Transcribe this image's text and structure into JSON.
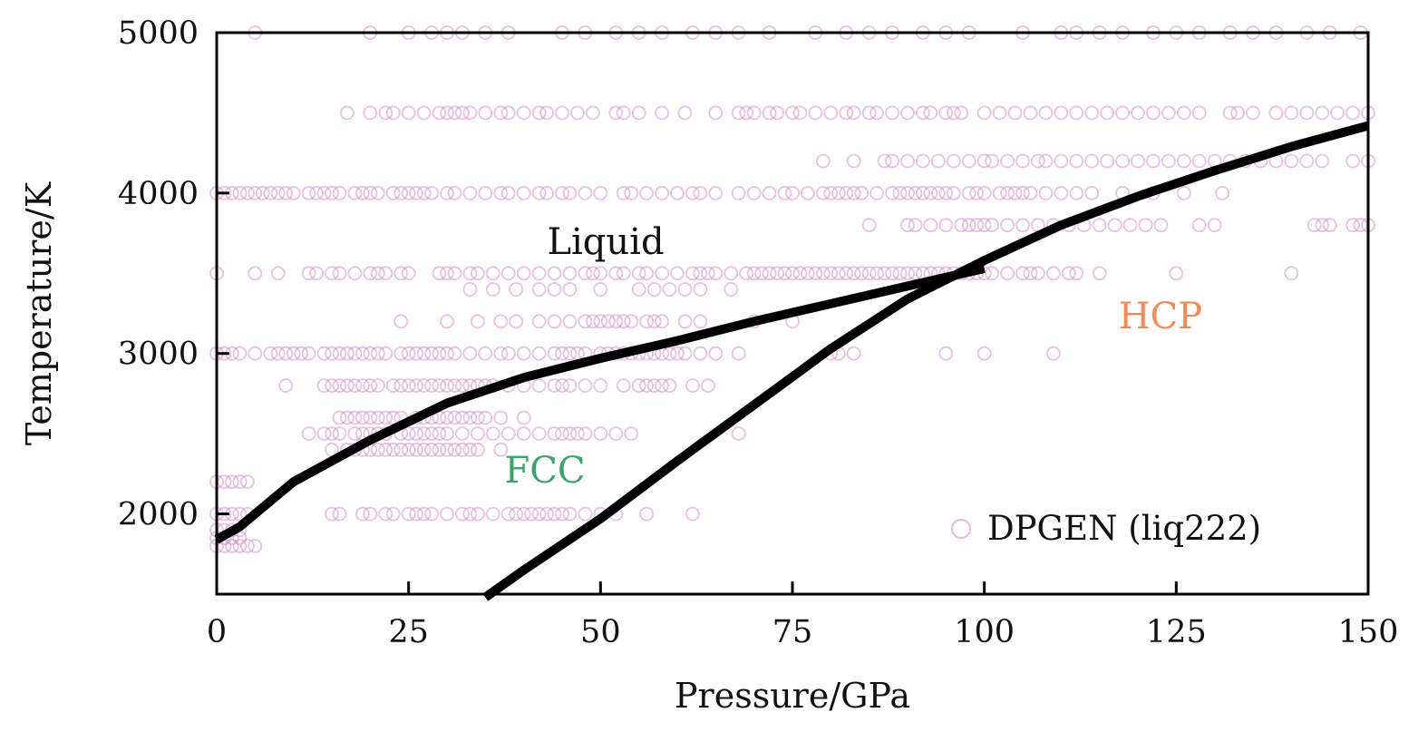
{
  "chart_data": {
    "type": "scatter",
    "xlabel": "Pressure/GPa",
    "ylabel": "Temperature/K",
    "xlim": [
      0,
      150
    ],
    "ylim": [
      1500,
      5000
    ],
    "xticks": [
      "0",
      "25",
      "50",
      "75",
      "100",
      "125",
      "150"
    ],
    "yticks": [
      "2000",
      "3000",
      "4000",
      "5000"
    ],
    "grid": false,
    "legend": {
      "position": "bottom-right",
      "entries": [
        "DPGEN (liq222)"
      ]
    },
    "colors": {
      "points": "#d48ec8",
      "curves": "#000000",
      "liquid": "#111111",
      "fcc": "#3aa36a",
      "hcp": "#f08a5d"
    },
    "region_labels": {
      "liquid": "Liquid",
      "fcc": "FCC",
      "hcp": "HCP"
    },
    "series": [
      {
        "name": "DPGEN (liq222)",
        "marker": "open-circle",
        "rows": [
          {
            "y": 5000,
            "x": [
              5,
              20,
              25,
              28,
              30,
              32,
              35,
              38,
              45,
              48,
              52,
              55,
              58,
              62,
              65,
              68,
              72,
              78,
              82,
              85,
              88,
              92,
              95,
              98,
              105,
              110,
              112,
              115,
              118,
              122,
              125,
              128,
              132,
              135,
              138,
              142,
              145,
              149
            ]
          },
          {
            "y": 4500,
            "x": [
              17,
              20,
              22,
              23,
              25,
              27,
              29,
              30,
              31,
              32,
              33,
              35,
              37,
              38,
              40,
              42,
              43,
              45,
              47,
              49,
              52,
              53,
              55,
              58,
              61,
              65,
              68,
              69,
              70,
              72,
              73,
              75,
              76,
              78,
              80,
              82,
              83,
              85,
              86,
              88,
              90,
              92,
              93,
              95,
              96,
              97,
              100,
              102,
              104,
              106,
              108,
              110,
              112,
              114,
              116,
              118,
              120,
              122,
              124,
              126,
              128,
              132,
              133,
              135,
              138,
              140,
              142,
              144,
              146,
              148,
              150
            ]
          },
          {
            "y": 4200,
            "x": [
              79,
              83,
              87,
              88,
              90,
              92,
              94,
              96,
              98,
              100,
              101,
              103,
              105,
              107,
              108,
              110,
              112,
              114,
              116,
              118,
              120,
              122,
              124,
              126,
              128,
              130,
              132,
              134,
              136,
              138,
              140,
              142,
              144,
              148,
              150
            ]
          },
          {
            "y": 4000,
            "x": [
              0,
              1,
              2,
              3,
              4,
              5,
              6,
              7,
              8,
              9,
              10,
              12,
              13,
              14,
              15,
              16,
              18,
              19,
              20,
              21,
              23,
              24,
              25,
              26,
              27,
              28,
              30,
              31,
              33,
              35,
              37,
              38,
              40,
              42,
              43,
              45,
              46,
              48,
              50,
              53,
              54,
              56,
              58,
              60,
              62,
              63,
              65,
              68,
              70,
              72,
              74,
              75,
              77,
              79,
              80,
              81,
              82,
              83,
              84,
              86,
              88,
              89,
              90,
              91,
              92,
              93,
              94,
              95,
              96,
              98,
              99,
              100,
              102,
              103,
              104,
              105,
              106,
              108,
              110,
              112,
              114,
              118,
              122,
              126,
              131
            ]
          },
          {
            "y": 3800,
            "x": [
              85,
              90,
              91,
              93,
              95,
              97,
              98,
              99,
              100,
              101,
              103,
              105,
              107,
              109,
              111,
              113,
              115,
              117,
              119,
              121,
              123,
              128,
              130,
              143,
              144,
              145,
              148,
              149,
              150
            ]
          },
          {
            "y": 3500,
            "x": [
              0,
              5,
              8,
              12,
              13,
              15,
              16,
              18,
              20,
              21,
              22,
              24,
              25,
              29,
              30,
              31,
              33,
              34,
              36,
              38,
              40,
              42,
              44,
              46,
              48,
              49,
              50,
              52,
              53,
              55,
              56,
              58,
              60,
              62,
              63,
              64,
              65,
              67,
              69,
              70,
              71,
              72,
              73,
              74,
              75,
              76,
              77,
              78,
              79,
              80,
              81,
              82,
              83,
              84,
              85,
              86,
              87,
              88,
              89,
              90,
              91,
              92,
              93,
              94,
              95,
              96,
              97,
              98,
              99,
              100,
              101,
              103,
              105,
              106,
              107,
              109,
              111,
              112,
              115,
              125,
              140
            ]
          },
          {
            "y": 3400,
            "x": [
              33,
              36,
              39,
              42,
              44,
              46,
              50,
              55,
              57,
              59,
              61,
              63,
              67
            ]
          },
          {
            "y": 3200,
            "x": [
              24,
              30,
              34,
              37,
              39,
              42,
              44,
              46,
              48,
              49,
              50,
              51,
              52,
              53,
              54,
              56,
              57,
              58,
              61,
              63,
              70,
              75
            ]
          },
          {
            "y": 3000,
            "x": [
              0,
              1,
              2,
              3,
              5,
              7,
              8,
              9,
              10,
              11,
              12,
              14,
              15,
              16,
              17,
              18,
              19,
              20,
              21,
              22,
              24,
              25,
              26,
              27,
              28,
              29,
              30,
              31,
              33,
              35,
              37,
              38,
              40,
              42,
              44,
              45,
              46,
              47,
              48,
              50,
              51,
              52,
              53,
              54,
              55,
              56,
              57,
              58,
              59,
              60,
              61,
              63,
              65,
              68,
              80,
              81,
              83,
              95,
              100,
              109
            ]
          },
          {
            "y": 2800,
            "x": [
              9,
              14,
              15,
              16,
              17,
              18,
              19,
              20,
              21,
              23,
              24,
              25,
              26,
              27,
              28,
              29,
              30,
              31,
              32,
              33,
              34,
              35,
              36,
              38,
              40,
              42,
              44,
              45,
              46,
              48,
              50,
              53,
              55,
              56,
              57,
              58,
              59,
              62,
              64
            ]
          },
          {
            "y": 2600,
            "x": [
              16,
              17,
              18,
              19,
              20,
              21,
              22,
              23,
              24,
              26,
              27,
              28,
              29,
              30,
              31,
              32,
              33,
              34,
              35,
              37,
              40
            ]
          },
          {
            "y": 2500,
            "x": [
              12,
              14,
              15,
              16,
              18,
              19,
              20,
              21,
              22,
              24,
              25,
              26,
              27,
              28,
              29,
              30,
              32,
              34,
              36,
              38,
              40,
              42,
              44,
              45,
              46,
              47,
              48,
              50,
              52,
              54,
              68
            ]
          },
          {
            "y": 2400,
            "x": [
              15,
              17,
              18,
              19,
              20,
              21,
              22,
              23,
              24,
              25,
              26,
              27,
              28,
              29,
              30,
              31,
              32,
              33,
              34,
              37
            ]
          },
          {
            "y": 2200,
            "x": [
              0,
              1,
              2,
              3,
              4
            ]
          },
          {
            "y": 2000,
            "x": [
              0,
              1,
              2,
              3,
              4,
              15,
              16,
              19,
              20,
              22,
              23,
              25,
              26,
              27,
              28,
              30,
              32,
              33,
              34,
              36,
              38,
              39,
              40,
              41,
              42,
              43,
              44,
              45,
              46,
              48,
              50,
              52,
              56,
              62
            ]
          },
          {
            "y": 1900,
            "x": [
              0,
              1,
              2,
              3
            ]
          },
          {
            "y": 1850,
            "x": [
              0,
              1,
              2,
              3
            ]
          },
          {
            "y": 1800,
            "x": [
              0,
              1,
              2,
              3,
              4,
              5
            ]
          }
        ]
      },
      {
        "name": "",
        "style": "solid-thick",
        "x": [
          0,
          3,
          10,
          20,
          30,
          40,
          50,
          60,
          70,
          80,
          90,
          100
        ],
        "y": [
          1840,
          1920,
          2200,
          2460,
          2690,
          2850,
          2970,
          3080,
          3200,
          3310,
          3420,
          3530
        ]
      },
      {
        "name": "",
        "style": "solid-thick",
        "x": [
          35,
          40,
          50,
          60,
          70,
          80,
          90,
          100,
          110,
          120,
          130,
          140,
          150
        ],
        "y": [
          1480,
          1650,
          1970,
          2330,
          2680,
          3030,
          3340,
          3580,
          3800,
          3980,
          4140,
          4290,
          4420
        ]
      }
    ]
  }
}
